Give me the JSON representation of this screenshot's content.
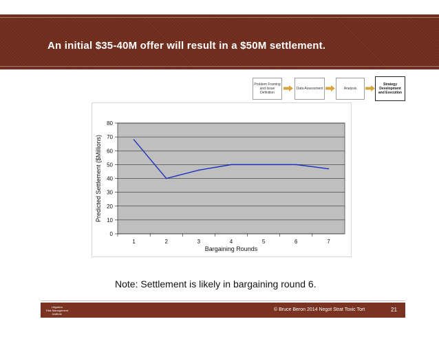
{
  "slide": {
    "title": "An initial $35-40M offer will result in a $50M settlement.",
    "note": "Note: Settlement is likely in bargaining round 6."
  },
  "flow": {
    "steps": [
      {
        "label": "Problem Framing and Issue Definition",
        "active": false
      },
      {
        "label": "Data Assessment",
        "active": false
      },
      {
        "label": "Analysis",
        "active": false
      },
      {
        "label": "Strategy Development and Execution",
        "active": true
      }
    ],
    "arrow_color": "#d6a43a"
  },
  "chart_data": {
    "type": "line",
    "xlabel": "Bargaining Rounds",
    "ylabel": "Predicted Settlement ($Millions)",
    "categories": [
      "1",
      "2",
      "3",
      "4",
      "5",
      "6",
      "7"
    ],
    "series": [
      {
        "values": [
          68,
          40,
          46,
          50,
          50,
          50,
          47
        ]
      }
    ],
    "ylim": [
      0,
      80
    ],
    "yticks": [
      0,
      10,
      20,
      30,
      40,
      50,
      60,
      70,
      80
    ],
    "grid": true,
    "plot_background": "#bfbfbf",
    "line_color": "#1f2fbf"
  },
  "footer": {
    "logo_lines": [
      "Litigation",
      "Risk  Management",
      "Institute"
    ],
    "copyright": "© Bruce Beron 2014  Negot Strat Toxic Tort",
    "page_number": "21",
    "band_color": "#7a3322"
  }
}
